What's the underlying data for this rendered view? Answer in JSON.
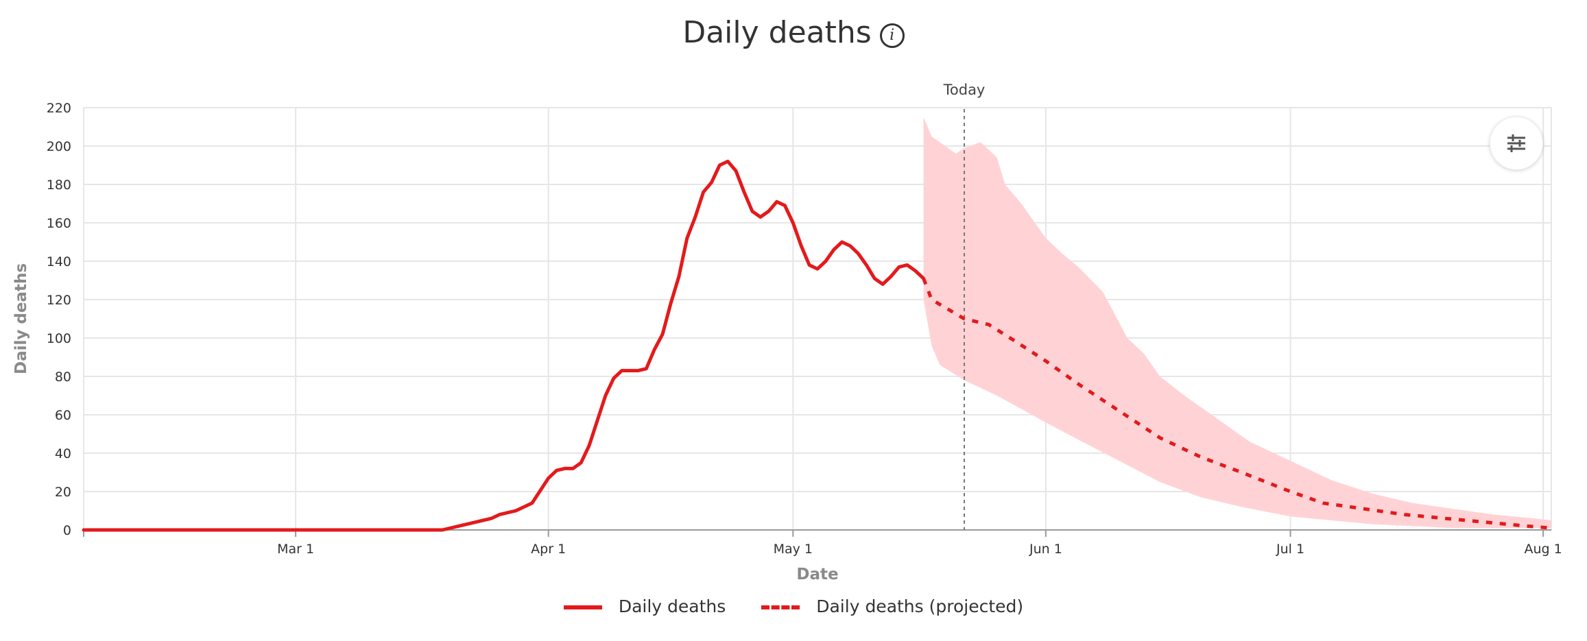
{
  "title": "Daily deaths",
  "info_icon": "info-circle-icon",
  "settings_icon": "sliders-icon",
  "colors": {
    "actual": "#e31a1c",
    "band": "#ffd3d5",
    "grid": "#e6e6e6",
    "today_line": "#777777"
  },
  "chart_data": {
    "type": "line",
    "title": "Daily deaths",
    "xlabel": "Date",
    "ylabel": "Daily deaths",
    "ylim": [
      0,
      220
    ],
    "yticks": [
      0,
      20,
      40,
      60,
      80,
      100,
      120,
      140,
      160,
      180,
      200,
      220
    ],
    "xlim": [
      "2020-02-04",
      "2020-08-02"
    ],
    "xticks": [
      {
        "date": "2020-03-01",
        "label": "Mar 1"
      },
      {
        "date": "2020-04-01",
        "label": "Apr 1"
      },
      {
        "date": "2020-05-01",
        "label": "May 1"
      },
      {
        "date": "2020-06-01",
        "label": "Jun 1"
      },
      {
        "date": "2020-07-01",
        "label": "Jul 1"
      },
      {
        "date": "2020-08-01",
        "label": "Aug 1"
      }
    ],
    "grid": true,
    "legend_position": "bottom-center",
    "today": {
      "date": "2020-05-22",
      "label": "Today"
    },
    "series": [
      {
        "name": "Daily deaths",
        "style": "solid",
        "points": [
          [
            "2020-02-04",
            0
          ],
          [
            "2020-03-19",
            0
          ],
          [
            "2020-03-22",
            3
          ],
          [
            "2020-03-25",
            6
          ],
          [
            "2020-03-26",
            8
          ],
          [
            "2020-03-28",
            10
          ],
          [
            "2020-03-30",
            14
          ],
          [
            "2020-04-01",
            27
          ],
          [
            "2020-04-02",
            31
          ],
          [
            "2020-04-03",
            32
          ],
          [
            "2020-04-04",
            32
          ],
          [
            "2020-04-05",
            35
          ],
          [
            "2020-04-06",
            44
          ],
          [
            "2020-04-07",
            57
          ],
          [
            "2020-04-08",
            70
          ],
          [
            "2020-04-09",
            79
          ],
          [
            "2020-04-10",
            83
          ],
          [
            "2020-04-12",
            83
          ],
          [
            "2020-04-13",
            84
          ],
          [
            "2020-04-14",
            94
          ],
          [
            "2020-04-15",
            102
          ],
          [
            "2020-04-16",
            118
          ],
          [
            "2020-04-17",
            132
          ],
          [
            "2020-04-18",
            152
          ],
          [
            "2020-04-19",
            163
          ],
          [
            "2020-04-20",
            176
          ],
          [
            "2020-04-21",
            181
          ],
          [
            "2020-04-22",
            190
          ],
          [
            "2020-04-23",
            192
          ],
          [
            "2020-04-24",
            187
          ],
          [
            "2020-04-25",
            176
          ],
          [
            "2020-04-26",
            166
          ],
          [
            "2020-04-27",
            163
          ],
          [
            "2020-04-28",
            166
          ],
          [
            "2020-04-29",
            171
          ],
          [
            "2020-04-30",
            169
          ],
          [
            "2020-05-01",
            160
          ],
          [
            "2020-05-02",
            148
          ],
          [
            "2020-05-03",
            138
          ],
          [
            "2020-05-04",
            136
          ],
          [
            "2020-05-05",
            140
          ],
          [
            "2020-05-06",
            146
          ],
          [
            "2020-05-07",
            150
          ],
          [
            "2020-05-08",
            148
          ],
          [
            "2020-05-09",
            144
          ],
          [
            "2020-05-10",
            138
          ],
          [
            "2020-05-11",
            131
          ],
          [
            "2020-05-12",
            128
          ],
          [
            "2020-05-13",
            132
          ],
          [
            "2020-05-14",
            137
          ],
          [
            "2020-05-15",
            138
          ],
          [
            "2020-05-16",
            135
          ],
          [
            "2020-05-17",
            131
          ]
        ]
      },
      {
        "name": "Daily deaths (projected)",
        "style": "dashed",
        "points": [
          [
            "2020-05-17",
            131
          ],
          [
            "2020-05-18",
            120
          ],
          [
            "2020-05-20",
            115
          ],
          [
            "2020-05-22",
            110
          ],
          [
            "2020-05-25",
            107
          ],
          [
            "2020-05-28",
            99
          ],
          [
            "2020-06-01",
            88
          ],
          [
            "2020-06-05",
            76
          ],
          [
            "2020-06-10",
            62
          ],
          [
            "2020-06-15",
            48
          ],
          [
            "2020-06-20",
            38
          ],
          [
            "2020-06-25",
            30
          ],
          [
            "2020-07-01",
            20
          ],
          [
            "2020-07-05",
            14
          ],
          [
            "2020-07-10",
            11
          ],
          [
            "2020-07-15",
            8
          ],
          [
            "2020-07-20",
            6
          ],
          [
            "2020-07-25",
            4
          ],
          [
            "2020-07-30",
            2
          ],
          [
            "2020-08-02",
            1
          ]
        ]
      }
    ],
    "uncertainty_band": {
      "upper": [
        [
          "2020-05-17",
          215
        ],
        [
          "2020-05-18",
          205
        ],
        [
          "2020-05-20",
          199
        ],
        [
          "2020-05-21",
          196
        ],
        [
          "2020-05-22",
          199
        ],
        [
          "2020-05-24",
          202
        ],
        [
          "2020-05-26",
          194
        ],
        [
          "2020-05-27",
          180
        ],
        [
          "2020-05-29",
          170
        ],
        [
          "2020-06-01",
          152
        ],
        [
          "2020-06-03",
          144
        ],
        [
          "2020-06-05",
          137
        ],
        [
          "2020-06-08",
          124
        ],
        [
          "2020-06-11",
          100
        ],
        [
          "2020-06-13",
          92
        ],
        [
          "2020-06-15",
          80
        ],
        [
          "2020-06-18",
          70
        ],
        [
          "2020-06-22",
          58
        ],
        [
          "2020-06-26",
          46
        ],
        [
          "2020-07-01",
          36
        ],
        [
          "2020-07-06",
          26
        ],
        [
          "2020-07-11",
          19
        ],
        [
          "2020-07-16",
          14
        ],
        [
          "2020-07-21",
          11
        ],
        [
          "2020-07-26",
          8
        ],
        [
          "2020-07-31",
          6
        ],
        [
          "2020-08-02",
          5
        ]
      ],
      "lower": [
        [
          "2020-05-17",
          120
        ],
        [
          "2020-05-18",
          96
        ],
        [
          "2020-05-19",
          86
        ],
        [
          "2020-05-22",
          78
        ],
        [
          "2020-05-26",
          70
        ],
        [
          "2020-06-01",
          56
        ],
        [
          "2020-06-05",
          47
        ],
        [
          "2020-06-10",
          36
        ],
        [
          "2020-06-15",
          25
        ],
        [
          "2020-06-20",
          17
        ],
        [
          "2020-06-25",
          12
        ],
        [
          "2020-07-01",
          7
        ],
        [
          "2020-07-06",
          5
        ],
        [
          "2020-07-11",
          3
        ],
        [
          "2020-07-16",
          2
        ],
        [
          "2020-07-21",
          1
        ],
        [
          "2020-08-02",
          1
        ]
      ]
    }
  }
}
